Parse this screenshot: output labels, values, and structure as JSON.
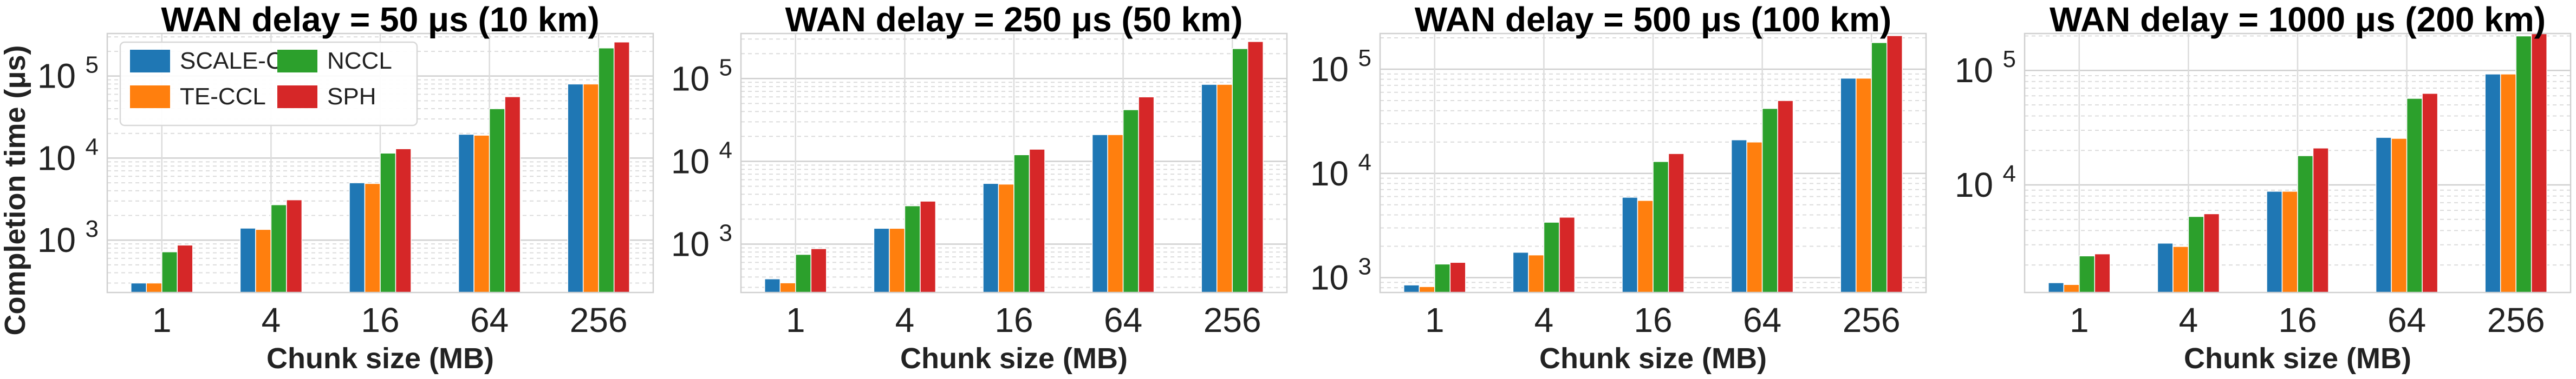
{
  "chart_data": {
    "type": "bar",
    "ylabel": "Completion time (μs)",
    "xlabel": "Chunk size (MB)",
    "y_scale": "log",
    "grid": true,
    "legend_placement": "top-left of first panel, 2 columns",
    "categories": [
      "1",
      "4",
      "16",
      "64",
      "256"
    ],
    "series_names": [
      "SCALE-CCL",
      "TE-CCL",
      "NCCL",
      "SPH"
    ],
    "colors": [
      "#1f77b4",
      "#ff7f0e",
      "#2ca02c",
      "#d62728"
    ],
    "legend": {
      "row1": [
        "SCALE-CCL",
        "NCCL"
      ],
      "row2": [
        "TE-CCL",
        "SPH"
      ]
    },
    "panels": [
      {
        "title": "WAN delay = 50 μs (10 km)",
        "ylim": [
          230,
          330000
        ],
        "yticks": [
          {
            "value": 1000,
            "label": "10",
            "exp": "3"
          },
          {
            "value": 10000,
            "label": "10",
            "exp": "4"
          },
          {
            "value": 100000,
            "label": "10",
            "exp": "5"
          }
        ],
        "series": [
          {
            "name": "SCALE-CCL",
            "values": [
              300,
              1400,
              5000,
              19500,
              80000
            ]
          },
          {
            "name": "TE-CCL",
            "values": [
              300,
              1350,
              4900,
              19000,
              80000
            ]
          },
          {
            "name": "NCCL",
            "values": [
              720,
              2700,
              11500,
              40000,
              220000
            ]
          },
          {
            "name": "SPH",
            "values": [
              870,
              3100,
              13000,
              56000,
              260000
            ]
          }
        ]
      },
      {
        "title": "WAN delay = 250 μs (50 km)",
        "ylim": [
          260,
          350000
        ],
        "yticks": [
          {
            "value": 1000,
            "label": "10",
            "exp": "3"
          },
          {
            "value": 10000,
            "label": "10",
            "exp": "4"
          },
          {
            "value": 100000,
            "label": "10",
            "exp": "5"
          }
        ],
        "series": [
          {
            "name": "SCALE-CCL",
            "values": [
              380,
              1550,
              5400,
              21000,
              85000
            ]
          },
          {
            "name": "TE-CCL",
            "values": [
              340,
              1550,
              5300,
              21000,
              85000
            ]
          },
          {
            "name": "NCCL",
            "values": [
              750,
              2900,
              12000,
              42000,
              230000
            ]
          },
          {
            "name": "SPH",
            "values": [
              880,
              3300,
              14000,
              60000,
              280000
            ]
          }
        ]
      },
      {
        "title": "WAN delay = 500 μs (100 km)",
        "ylim": [
          720,
          220000
        ],
        "yticks": [
          {
            "value": 1000,
            "label": "10",
            "exp": "3"
          },
          {
            "value": 10000,
            "label": "10",
            "exp": "4"
          },
          {
            "value": 100000,
            "label": "10",
            "exp": "5"
          }
        ],
        "series": [
          {
            "name": "SCALE-CCL",
            "values": [
              850,
              1750,
              5900,
              21000,
              82000
            ]
          },
          {
            "name": "TE-CCL",
            "values": [
              820,
              1650,
              5500,
              20000,
              82000
            ]
          },
          {
            "name": "NCCL",
            "values": [
              1350,
              3400,
              13000,
              42000,
              180000
            ]
          },
          {
            "name": "SPH",
            "values": [
              1400,
              3800,
              15500,
              50000,
              210000
            ]
          }
        ]
      },
      {
        "title": "WAN delay = 1000 μs (200 km)",
        "ylim": [
          1150,
          210000
        ],
        "yticks": [
          {
            "value": 10000,
            "label": "10",
            "exp": "4"
          },
          {
            "value": 100000,
            "label": "10",
            "exp": "5"
          }
        ],
        "series": [
          {
            "name": "SCALE-CCL",
            "values": [
              1400,
              3100,
              8800,
              26000,
              93000
            ]
          },
          {
            "name": "TE-CCL",
            "values": [
              1350,
              2900,
              8800,
              25500,
              93000
            ]
          },
          {
            "name": "NCCL",
            "values": [
              2400,
              5300,
              18000,
              57000,
              200000
            ]
          },
          {
            "name": "SPH",
            "values": [
              2500,
              5600,
              21000,
              63000,
              210000
            ]
          }
        ]
      }
    ]
  }
}
